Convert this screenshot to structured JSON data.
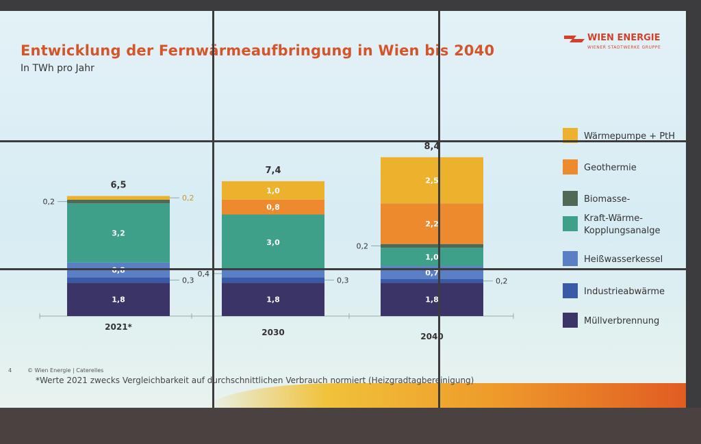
{
  "header": {
    "title": "Entwicklung der Fernwärmeaufbringung in Wien bis 2040",
    "subtitle": "In TWh pro Jahr"
  },
  "logo": {
    "name": "WIEN ENERGIE",
    "tagline": "WIENER STADTWERKE GRUPPE",
    "icon": "wien-energie-logo-icon",
    "color": "#d4402a"
  },
  "footer": {
    "page_number": "4",
    "copyright": "© Wien Energie | Caterelles",
    "footnote": "*Werte 2021 zwecks Vergleichbarkeit auf durchschnittlichen Verbrauch normiert (Heizgradtagbereinigung)"
  },
  "chart_data": {
    "type": "bar",
    "stacked": true,
    "categories": [
      "2021*",
      "2030",
      "2040"
    ],
    "totals": [
      "6,5",
      "7,4",
      "8,4"
    ],
    "series": [
      {
        "name": "Müllverbrennung",
        "color": "#3a3566",
        "values": [
          1.8,
          1.8,
          1.8
        ],
        "labels": [
          "1,8",
          "1,8",
          "1,8"
        ]
      },
      {
        "name": "Industrieabwärme",
        "color": "#3b5aa6",
        "values": [
          0.3,
          0.3,
          0.2
        ],
        "labels": [
          "0,3",
          "0,3",
          "0,2"
        ]
      },
      {
        "name": "Heißwasserkessel",
        "color": "#5b7fc4",
        "values": [
          0.8,
          0.4,
          0.7
        ],
        "labels": [
          "0,8",
          "0,4",
          "0,7"
        ]
      },
      {
        "name": "Kraft-Wärme-Kopplungsanalge",
        "color": "#3fa089",
        "values": [
          3.2,
          3.0,
          1.0
        ],
        "labels": [
          "3,2",
          "3,0",
          "1,0"
        ]
      },
      {
        "name": "Biomasse-",
        "color": "#4e6a56",
        "values": [
          0.2,
          0.0,
          0.2
        ],
        "labels": [
          "0,2",
          "",
          "0,2"
        ]
      },
      {
        "name": "Geothermie",
        "color": "#ee8a2e",
        "values": [
          0.0,
          0.8,
          2.2
        ],
        "labels": [
          "",
          "0,8",
          "2,2"
        ]
      },
      {
        "name": "Wärmepumpe + PtH",
        "color": "#ecb22e",
        "values": [
          0.2,
          1.0,
          2.5
        ],
        "labels": [
          "0,2",
          "1,0",
          "2,5"
        ]
      }
    ],
    "legend_position": "right",
    "grid": false
  }
}
